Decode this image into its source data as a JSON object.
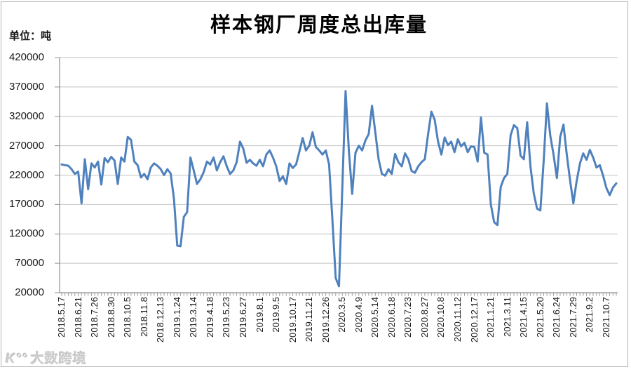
{
  "watermark": {
    "logo": "K°°",
    "text": "大数跨境"
  },
  "chart_data": {
    "type": "line",
    "title": "样本钢厂周度总出库量",
    "unit_label": "单位：吨",
    "xlabel": "",
    "ylabel": "",
    "ylim": [
      20000,
      420000
    ],
    "y_ticks": [
      420000,
      370000,
      320000,
      270000,
      220000,
      170000,
      120000,
      70000,
      20000
    ],
    "x_tick_labels": [
      "2018.5.17",
      "2018.6.21",
      "2018.7.26",
      "2018.8.30",
      "2018.10.5",
      "2018.11.8",
      "2018.12.13",
      "2019.1.24",
      "2019.3.14",
      "2019.4.18",
      "2019.5.23",
      "2019.6.27",
      "2019.8.1",
      "2019.9.5",
      "2019.10.17",
      "2019.11.21",
      "2019.12.26",
      "2020.3.5",
      "2020.4.9",
      "2020.5.14",
      "2020.6.18",
      "2020.7.23",
      "2020.8.27",
      "2020.10.8",
      "2020.11.12",
      "2020.12.17",
      "2021.1.21",
      "2021.3.11",
      "2021.4.15",
      "2021.5.20",
      "2021.6.24",
      "2021.7.29",
      "2021.9.2",
      "2021.10.7"
    ],
    "x_label_every": 5,
    "grid": "horizontal",
    "legend": "none",
    "line_color": "#4F81BD",
    "grid_color": "#c2c2c2",
    "axis_color": "#8f8f8f",
    "series": [
      {
        "name": "周度总出库量",
        "values": [
          238000,
          237000,
          236000,
          230000,
          222000,
          226000,
          172000,
          247000,
          196000,
          240000,
          233000,
          243000,
          204000,
          249000,
          242000,
          251000,
          245000,
          205000,
          250000,
          243000,
          285000,
          280000,
          243000,
          237000,
          216000,
          222000,
          213000,
          233000,
          240000,
          236000,
          230000,
          220000,
          230000,
          223000,
          180000,
          100000,
          99000,
          149000,
          157000,
          250000,
          228000,
          205000,
          213000,
          225000,
          243000,
          238000,
          250000,
          228000,
          242000,
          252000,
          235000,
          222000,
          228000,
          242000,
          277000,
          265000,
          241000,
          246000,
          240000,
          236000,
          246000,
          235000,
          255000,
          262000,
          250000,
          235000,
          210000,
          218000,
          205000,
          240000,
          232000,
          238000,
          260000,
          283000,
          262000,
          270000,
          293000,
          268000,
          262000,
          255000,
          262000,
          238000,
          144000,
          45000,
          31000,
          197000,
          363000,
          261000,
          188000,
          258000,
          270000,
          262000,
          279000,
          290000,
          338000,
          293000,
          247000,
          222000,
          219000,
          230000,
          222000,
          256000,
          242000,
          235000,
          257000,
          247000,
          227000,
          224000,
          235000,
          242000,
          247000,
          290000,
          328000,
          314000,
          277000,
          255000,
          284000,
          271000,
          277000,
          259000,
          281000,
          269000,
          275000,
          259000,
          269000,
          268000,
          243000,
          318000,
          258000,
          255000,
          170000,
          140000,
          135000,
          200000,
          215000,
          222000,
          288000,
          305000,
          300000,
          253000,
          247000,
          310000,
          235000,
          189000,
          163000,
          160000,
          243000,
          342000,
          288000,
          255000,
          215000,
          285000,
          306000,
          255000,
          211000,
          172000,
          210000,
          240000,
          257000,
          246000,
          263000,
          250000,
          233000,
          237000,
          219000,
          198000,
          186000,
          199000,
          206000
        ]
      }
    ]
  }
}
